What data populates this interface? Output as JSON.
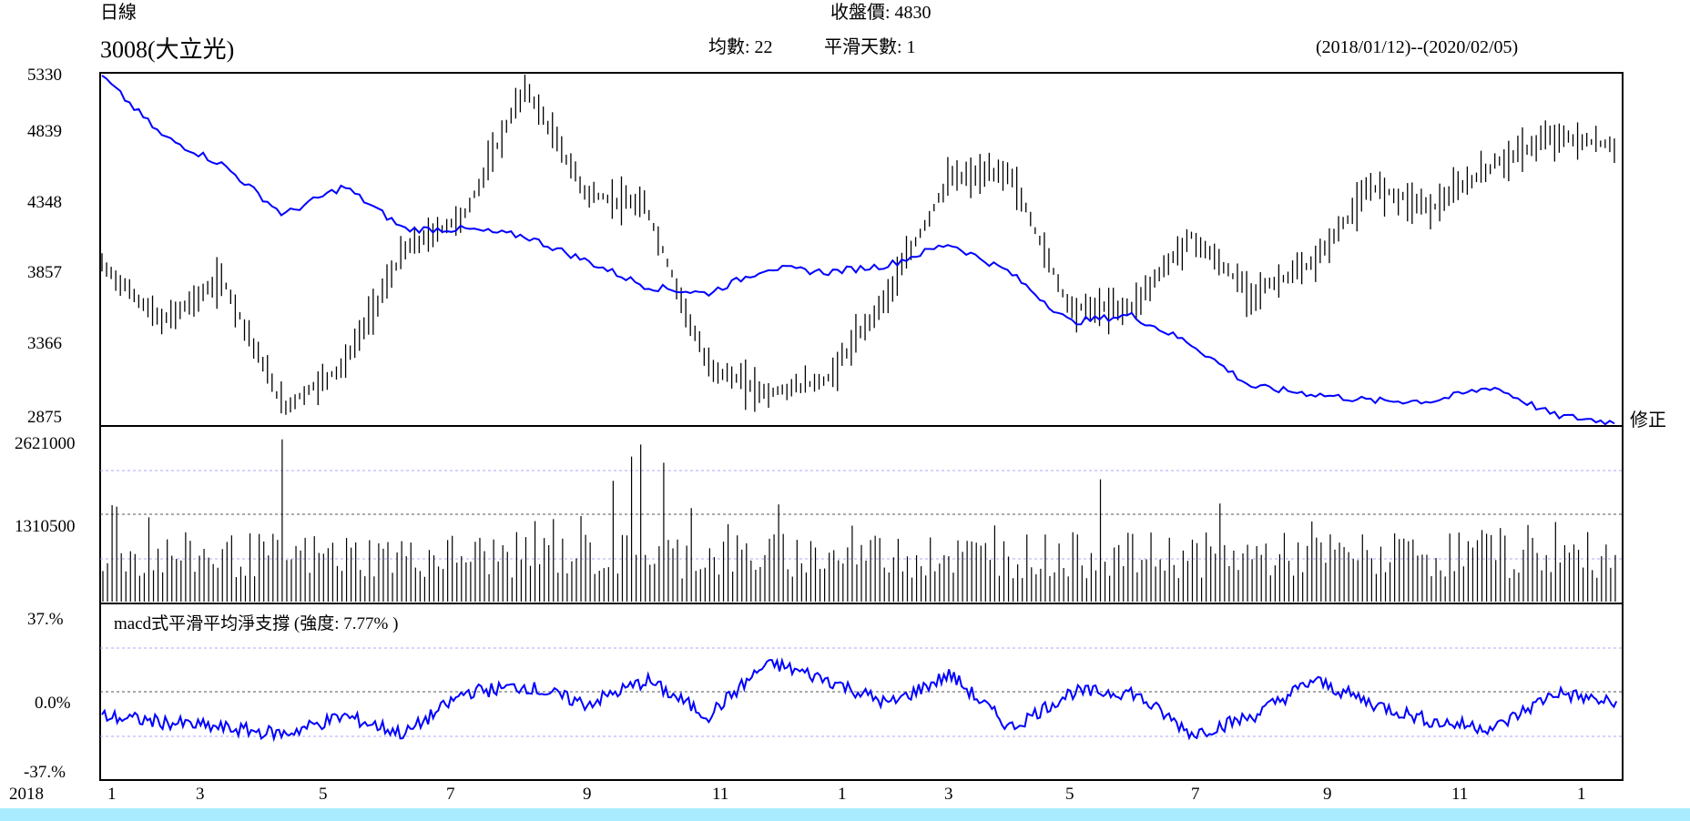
{
  "header": {
    "period": "日線",
    "stock": "3008(大立光)",
    "close_label": "收盤價: 4830",
    "avg_label": "均數: 22",
    "smooth_label": "平滑天數: 1",
    "range_label": "(2018/01/12)--(2020/02/05)",
    "adjust_label": "修正"
  },
  "colors": {
    "price": "#000000",
    "ma_line": "#0000ff",
    "grid": "#aaaaff",
    "axis": "#000000"
  },
  "chart_data": [
    {
      "type": "candlestick",
      "title": "3008(大立光)",
      "y_ticks": [
        "5330",
        "4839",
        "4348",
        "3857",
        "3366",
        "2875"
      ],
      "ylim": [
        2875,
        5330
      ],
      "x_labels": [
        "2018",
        "1",
        "3",
        "5",
        "7",
        "9",
        "11",
        "1",
        "3",
        "5",
        "7",
        "9",
        "11",
        "1"
      ],
      "series": [
        {
          "kind": "close",
          "x": [
            "2018-01",
            "2018-02",
            "2018-03",
            "2018-04",
            "2018-05",
            "2018-06",
            "2018-07",
            "2018-08",
            "2018-09",
            "2018-10",
            "2018-11",
            "2018-12",
            "2019-01",
            "2019-02",
            "2019-03",
            "2019-04",
            "2019-05",
            "2019-06",
            "2019-07",
            "2019-08",
            "2019-09",
            "2019-10",
            "2019-11",
            "2019-12",
            "2020-01",
            "2020-02"
          ],
          "values": [
            4000,
            3600,
            3900,
            3000,
            3300,
            4100,
            4350,
            5250,
            4500,
            4400,
            3300,
            3100,
            3200,
            3800,
            4600,
            4650,
            3700,
            3700,
            4200,
            3800,
            4000,
            4550,
            4400,
            4700,
            4900,
            4830
          ]
        },
        {
          "kind": "ma-line",
          "x": [
            "2018-01",
            "2018-02",
            "2018-03",
            "2018-04",
            "2018-05",
            "2018-06",
            "2018-07",
            "2018-08",
            "2018-09",
            "2018-10",
            "2018-11",
            "2018-12",
            "2019-01",
            "2019-02",
            "2019-03",
            "2019-04",
            "2019-05",
            "2019-06",
            "2019-07",
            "2019-08",
            "2019-09",
            "2019-10",
            "2019-11",
            "2019-12",
            "2020-01",
            "2020-02"
          ],
          "values": [
            5320,
            4900,
            4700,
            4350,
            4550,
            4250,
            4250,
            4200,
            4030,
            3850,
            3800,
            3980,
            3950,
            4000,
            4150,
            3950,
            3600,
            3650,
            3450,
            3150,
            3100,
            3050,
            3050,
            3150,
            2950,
            2900
          ]
        }
      ]
    },
    {
      "type": "bar",
      "title": "volume",
      "y_ticks": [
        "2621000",
        "1310500"
      ],
      "ylim": [
        0,
        2621000
      ],
      "x": [
        "2018-01",
        "2018-02",
        "2018-03",
        "2018-04",
        "2018-05",
        "2018-06",
        "2018-07",
        "2018-08",
        "2018-09",
        "2018-10",
        "2018-11",
        "2018-12",
        "2019-01",
        "2019-02",
        "2019-03",
        "2019-04",
        "2019-05",
        "2019-06",
        "2019-07",
        "2019-08",
        "2019-09",
        "2019-10",
        "2019-11",
        "2019-12",
        "2020-01",
        "2020-02"
      ],
      "values": [
        1500000,
        1200000,
        1000000,
        2500000,
        1100000,
        900000,
        800000,
        1200000,
        1300000,
        2500000,
        1000000,
        1500000,
        1300000,
        900000,
        1000000,
        1200000,
        1100000,
        2621000,
        1200000,
        1800000,
        1200000,
        900000,
        1000000,
        1100000,
        1200000,
        1250000
      ]
    },
    {
      "type": "line",
      "title": "macd式平滑平均淨支撐 (強度: 7.77% )",
      "y_ticks": [
        "37.%",
        "0.0%",
        "-37.%"
      ],
      "ylim": [
        -37,
        37
      ],
      "series": [
        {
          "name": "macd",
          "x": [
            "2018-01",
            "2018-02",
            "2018-03",
            "2018-04",
            "2018-05",
            "2018-06",
            "2018-07",
            "2018-08",
            "2018-09",
            "2018-10",
            "2018-11",
            "2018-12",
            "2019-01",
            "2019-02",
            "2019-03",
            "2019-04",
            "2019-05",
            "2019-06",
            "2019-07",
            "2019-08",
            "2019-09",
            "2019-10",
            "2019-11",
            "2019-12",
            "2020-01",
            "2020-02"
          ],
          "values": [
            -20,
            -25,
            -30,
            -35,
            -20,
            -35,
            0,
            5,
            -10,
            10,
            -20,
            25,
            10,
            -10,
            15,
            -30,
            0,
            0,
            -35,
            -20,
            10,
            -10,
            -25,
            -30,
            0,
            -10
          ]
        }
      ]
    }
  ]
}
